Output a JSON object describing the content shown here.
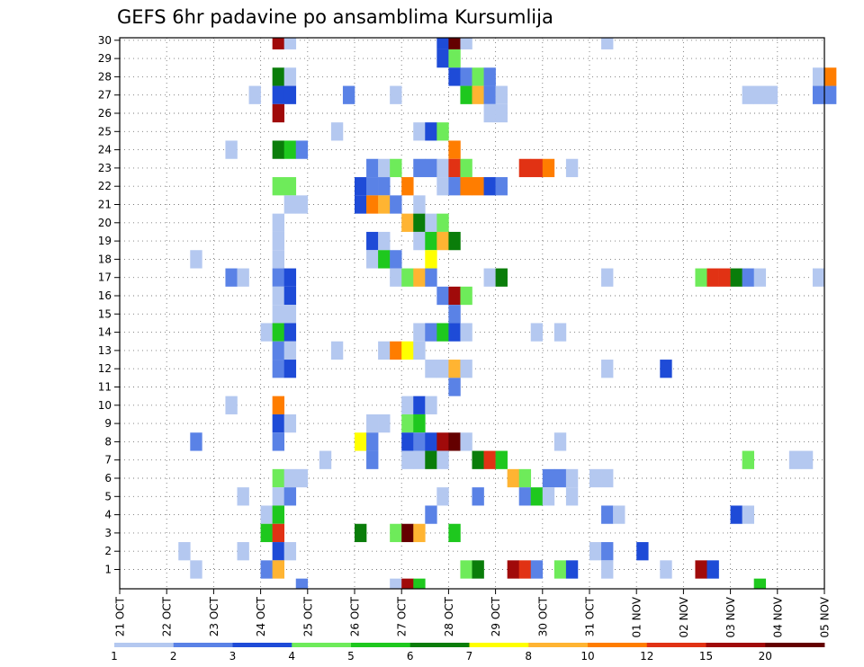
{
  "chart_data": {
    "type": "heatmap",
    "title": "GEFS 6hr padavine po ansamblima Kursumlija",
    "xlabel": "",
    "ylabel": "",
    "x_tick_labels": [
      "21 OCT",
      "22 OCT",
      "23 OCT",
      "24 OCT",
      "25 OCT",
      "26 OCT",
      "27 OCT",
      "28 OCT",
      "29 OCT",
      "30 OCT",
      "31 OCT",
      "01 NOV",
      "02 NOV",
      "03 NOV",
      "04 NOV",
      "05 NOV"
    ],
    "y_tick_labels": [
      "1",
      "2",
      "3",
      "4",
      "5",
      "6",
      "7",
      "8",
      "9",
      "10",
      "11",
      "12",
      "13",
      "14",
      "15",
      "16",
      "17",
      "18",
      "19",
      "20",
      "21",
      "22",
      "23",
      "24",
      "25",
      "26",
      "27",
      "28",
      "29",
      "30"
    ],
    "legend": {
      "levels": [
        "1",
        "2",
        "3",
        "4",
        "5",
        "6",
        "7",
        "8",
        "10",
        "12",
        "15",
        "20"
      ],
      "colors": [
        "#b4c8f0",
        "#5a82e6",
        "#1e4bd7",
        "#6eeb5a",
        "#1ec81e",
        "#0a7d0a",
        "#ffff00",
        "#ffb432",
        "#ff7d00",
        "#e13214",
        "#a00a0a",
        "#640000"
      ]
    },
    "grid": true,
    "colors": [
      "#b4c8f0",
      "#5a82e6",
      "#1e4bd7",
      "#6eeb5a",
      "#1ec81e",
      "#0a7d0a",
      "#ffff00",
      "#ffb432",
      "#ff7d00",
      "#e13214",
      "#a00a0a",
      "#640000"
    ],
    "cells_note": "each cell: [time_step_6h_from_21OCT_00, member, color_level]",
    "cells": [
      [
        13,
        30,
        10
      ],
      [
        14,
        30,
        0
      ],
      [
        27,
        30,
        2
      ],
      [
        28,
        30,
        11
      ],
      [
        29,
        30,
        0
      ],
      [
        41,
        30,
        0
      ],
      [
        27,
        29,
        2
      ],
      [
        28,
        29,
        3
      ],
      [
        13,
        28,
        5
      ],
      [
        14,
        28,
        0
      ],
      [
        28,
        28,
        2
      ],
      [
        29,
        28,
        1
      ],
      [
        30,
        28,
        3
      ],
      [
        31,
        28,
        1
      ],
      [
        59,
        28,
        0
      ],
      [
        60,
        28,
        8
      ],
      [
        11,
        27,
        0
      ],
      [
        13,
        27,
        2
      ],
      [
        14,
        27,
        2
      ],
      [
        19,
        27,
        1
      ],
      [
        23,
        27,
        0
      ],
      [
        29,
        27,
        4
      ],
      [
        30,
        27,
        7
      ],
      [
        31,
        27,
        1
      ],
      [
        32,
        27,
        0
      ],
      [
        53,
        27,
        0
      ],
      [
        54,
        27,
        0
      ],
      [
        55,
        27,
        0
      ],
      [
        59,
        27,
        1
      ],
      [
        60,
        27,
        1
      ],
      [
        13,
        26,
        10
      ],
      [
        31,
        26,
        0
      ],
      [
        32,
        26,
        0
      ],
      [
        18,
        25,
        0
      ],
      [
        25,
        25,
        0
      ],
      [
        26,
        25,
        2
      ],
      [
        27,
        25,
        3
      ],
      [
        9,
        24,
        0
      ],
      [
        13,
        24,
        5
      ],
      [
        14,
        24,
        4
      ],
      [
        15,
        24,
        1
      ],
      [
        28,
        24,
        8
      ],
      [
        21,
        23,
        1
      ],
      [
        22,
        23,
        0
      ],
      [
        23,
        23,
        3
      ],
      [
        25,
        23,
        1
      ],
      [
        26,
        23,
        1
      ],
      [
        27,
        23,
        0
      ],
      [
        28,
        23,
        9
      ],
      [
        29,
        23,
        3
      ],
      [
        34,
        23,
        9
      ],
      [
        35,
        23,
        9
      ],
      [
        36,
        23,
        8
      ],
      [
        38,
        23,
        0
      ],
      [
        13,
        22,
        3
      ],
      [
        14,
        22,
        3
      ],
      [
        20,
        22,
        2
      ],
      [
        21,
        22,
        1
      ],
      [
        22,
        22,
        1
      ],
      [
        24,
        22,
        8
      ],
      [
        27,
        22,
        0
      ],
      [
        28,
        22,
        1
      ],
      [
        29,
        22,
        8
      ],
      [
        30,
        22,
        8
      ],
      [
        31,
        22,
        2
      ],
      [
        32,
        22,
        1
      ],
      [
        14,
        21,
        0
      ],
      [
        15,
        21,
        0
      ],
      [
        20,
        21,
        2
      ],
      [
        21,
        21,
        8
      ],
      [
        22,
        21,
        7
      ],
      [
        23,
        21,
        1
      ],
      [
        25,
        21,
        0
      ],
      [
        13,
        20,
        0
      ],
      [
        24,
        20,
        7
      ],
      [
        25,
        20,
        5
      ],
      [
        26,
        20,
        0
      ],
      [
        27,
        20,
        3
      ],
      [
        13,
        19,
        0
      ],
      [
        21,
        19,
        2
      ],
      [
        22,
        19,
        0
      ],
      [
        25,
        19,
        0
      ],
      [
        26,
        19,
        4
      ],
      [
        27,
        19,
        7
      ],
      [
        28,
        19,
        5
      ],
      [
        6,
        18,
        0
      ],
      [
        13,
        18,
        0
      ],
      [
        21,
        18,
        0
      ],
      [
        22,
        18,
        4
      ],
      [
        23,
        18,
        1
      ],
      [
        26,
        18,
        6
      ],
      [
        9,
        17,
        1
      ],
      [
        10,
        17,
        0
      ],
      [
        13,
        17,
        1
      ],
      [
        14,
        17,
        2
      ],
      [
        23,
        17,
        0
      ],
      [
        24,
        17,
        3
      ],
      [
        25,
        17,
        7
      ],
      [
        26,
        17,
        1
      ],
      [
        31,
        17,
        0
      ],
      [
        32,
        17,
        5
      ],
      [
        41,
        17,
        0
      ],
      [
        49,
        17,
        3
      ],
      [
        50,
        17,
        9
      ],
      [
        51,
        17,
        9
      ],
      [
        52,
        17,
        5
      ],
      [
        53,
        17,
        1
      ],
      [
        54,
        17,
        0
      ],
      [
        59,
        17,
        0
      ],
      [
        13,
        16,
        0
      ],
      [
        14,
        16,
        2
      ],
      [
        27,
        16,
        1
      ],
      [
        28,
        16,
        10
      ],
      [
        29,
        16,
        3
      ],
      [
        13,
        15,
        0
      ],
      [
        14,
        15,
        0
      ],
      [
        28,
        15,
        1
      ],
      [
        12,
        14,
        0
      ],
      [
        13,
        14,
        4
      ],
      [
        14,
        14,
        2
      ],
      [
        25,
        14,
        0
      ],
      [
        26,
        14,
        1
      ],
      [
        27,
        14,
        4
      ],
      [
        28,
        14,
        2
      ],
      [
        29,
        14,
        0
      ],
      [
        35,
        14,
        0
      ],
      [
        37,
        14,
        0
      ],
      [
        13,
        13,
        1
      ],
      [
        14,
        13,
        0
      ],
      [
        18,
        13,
        0
      ],
      [
        22,
        13,
        0
      ],
      [
        23,
        13,
        8
      ],
      [
        24,
        13,
        6
      ],
      [
        25,
        13,
        0
      ],
      [
        13,
        12,
        1
      ],
      [
        14,
        12,
        2
      ],
      [
        26,
        12,
        0
      ],
      [
        27,
        12,
        0
      ],
      [
        28,
        12,
        7
      ],
      [
        29,
        12,
        0
      ],
      [
        41,
        12,
        0
      ],
      [
        46,
        12,
        2
      ],
      [
        28,
        11,
        1
      ],
      [
        9,
        10,
        0
      ],
      [
        13,
        10,
        8
      ],
      [
        24,
        10,
        0
      ],
      [
        25,
        10,
        2
      ],
      [
        26,
        10,
        0
      ],
      [
        13,
        9,
        2
      ],
      [
        14,
        9,
        0
      ],
      [
        21,
        9,
        0
      ],
      [
        22,
        9,
        0
      ],
      [
        24,
        9,
        3
      ],
      [
        25,
        9,
        4
      ],
      [
        6,
        8,
        1
      ],
      [
        13,
        8,
        1
      ],
      [
        20,
        8,
        6
      ],
      [
        21,
        8,
        1
      ],
      [
        24,
        8,
        2
      ],
      [
        25,
        8,
        1
      ],
      [
        26,
        8,
        2
      ],
      [
        27,
        8,
        10
      ],
      [
        28,
        8,
        11
      ],
      [
        29,
        8,
        0
      ],
      [
        37,
        8,
        0
      ],
      [
        17,
        7,
        0
      ],
      [
        21,
        7,
        1
      ],
      [
        24,
        7,
        0
      ],
      [
        25,
        7,
        0
      ],
      [
        26,
        7,
        5
      ],
      [
        27,
        7,
        0
      ],
      [
        30,
        7,
        5
      ],
      [
        31,
        7,
        9
      ],
      [
        32,
        7,
        4
      ],
      [
        53,
        7,
        3
      ],
      [
        57,
        7,
        0
      ],
      [
        58,
        7,
        0
      ],
      [
        13,
        6,
        3
      ],
      [
        14,
        6,
        0
      ],
      [
        15,
        6,
        0
      ],
      [
        33,
        6,
        7
      ],
      [
        34,
        6,
        3
      ],
      [
        36,
        6,
        1
      ],
      [
        37,
        6,
        1
      ],
      [
        38,
        6,
        0
      ],
      [
        40,
        6,
        0
      ],
      [
        41,
        6,
        0
      ],
      [
        10,
        5,
        0
      ],
      [
        13,
        5,
        0
      ],
      [
        14,
        5,
        1
      ],
      [
        27,
        5,
        0
      ],
      [
        30,
        5,
        1
      ],
      [
        34,
        5,
        1
      ],
      [
        35,
        5,
        4
      ],
      [
        36,
        5,
        0
      ],
      [
        38,
        5,
        0
      ],
      [
        12,
        4,
        0
      ],
      [
        13,
        4,
        4
      ],
      [
        26,
        4,
        1
      ],
      [
        41,
        4,
        1
      ],
      [
        42,
        4,
        0
      ],
      [
        52,
        4,
        2
      ],
      [
        53,
        4,
        0
      ],
      [
        12,
        3,
        4
      ],
      [
        13,
        3,
        9
      ],
      [
        20,
        3,
        5
      ],
      [
        23,
        3,
        3
      ],
      [
        24,
        3,
        11
      ],
      [
        25,
        3,
        7
      ],
      [
        28,
        3,
        4
      ],
      [
        5,
        2,
        0
      ],
      [
        10,
        2,
        0
      ],
      [
        13,
        2,
        2
      ],
      [
        14,
        2,
        0
      ],
      [
        40,
        2,
        0
      ],
      [
        41,
        2,
        1
      ],
      [
        44,
        2,
        2
      ],
      [
        6,
        1,
        0
      ],
      [
        12,
        1,
        1
      ],
      [
        13,
        1,
        7
      ],
      [
        29,
        1,
        3
      ],
      [
        30,
        1,
        5
      ],
      [
        33,
        1,
        10
      ],
      [
        34,
        1,
        9
      ],
      [
        35,
        1,
        1
      ],
      [
        37,
        1,
        3
      ],
      [
        38,
        1,
        2
      ],
      [
        41,
        1,
        0
      ],
      [
        46,
        1,
        0
      ],
      [
        49,
        1,
        10
      ],
      [
        50,
        1,
        2
      ],
      [
        15,
        0,
        1
      ],
      [
        23,
        0,
        0
      ],
      [
        24,
        0,
        10
      ],
      [
        25,
        0,
        4
      ],
      [
        54,
        0,
        4
      ]
    ]
  }
}
